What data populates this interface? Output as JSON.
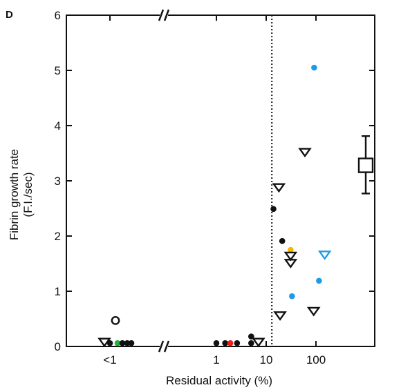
{
  "chart_data": {
    "type": "scatter",
    "panel_label": "D",
    "title": "",
    "xlabel": "Residual activity (%)",
    "ylabel_lines": [
      "Fibrin growth rate",
      "(F.I./sec)"
    ],
    "ylim": [
      0,
      6
    ],
    "y_ticks": [
      "0",
      "1",
      "2",
      "3",
      "4",
      "5",
      "6"
    ],
    "x_scale": "log with axis break",
    "x_ticks": [
      "<1",
      "1",
      "10",
      "100"
    ],
    "axis_break_symbol": "//",
    "reference_line": {
      "x": 13,
      "style": "dotted"
    },
    "grid": false,
    "legend": "none",
    "colors": {
      "black": "#111111",
      "blue": "#1e9be8",
      "red": "#e8201e",
      "green": "#1fb33a",
      "yellow": "#f5b800"
    },
    "points": [
      {
        "x": "<1",
        "y": 0.47,
        "marker": "circle-open",
        "color": "black"
      },
      {
        "x": "<1",
        "y": 0.08,
        "marker": "triangle-down-open",
        "color": "black"
      },
      {
        "x": "<1",
        "y": 0.06,
        "marker": "dot",
        "color": "black"
      },
      {
        "x": "<1",
        "y": 0.06,
        "marker": "dot",
        "color": "green"
      },
      {
        "x": "<1",
        "y": 0.06,
        "marker": "dot",
        "color": "black"
      },
      {
        "x": "<1",
        "y": 0.06,
        "marker": "dot",
        "color": "black"
      },
      {
        "x": "<1",
        "y": 0.06,
        "marker": "dot",
        "color": "black"
      },
      {
        "x": 1,
        "y": 0.06,
        "marker": "dot",
        "color": "black"
      },
      {
        "x": 1.5,
        "y": 0.06,
        "marker": "dot",
        "color": "black"
      },
      {
        "x": 1.9,
        "y": 0.06,
        "marker": "dot",
        "color": "red"
      },
      {
        "x": 2.6,
        "y": 0.06,
        "marker": "dot",
        "color": "black"
      },
      {
        "x": 5,
        "y": 0.18,
        "marker": "dot",
        "color": "black"
      },
      {
        "x": 5,
        "y": 0.06,
        "marker": "dot",
        "color": "black"
      },
      {
        "x": 7,
        "y": 0.08,
        "marker": "triangle-down-open",
        "color": "black"
      },
      {
        "x": 14,
        "y": 2.49,
        "marker": "dot",
        "color": "black"
      },
      {
        "x": 18,
        "y": 2.88,
        "marker": "triangle-down-open",
        "color": "black"
      },
      {
        "x": 19,
        "y": 0.56,
        "marker": "triangle-down-open",
        "color": "black"
      },
      {
        "x": 21,
        "y": 1.91,
        "marker": "dot",
        "color": "black"
      },
      {
        "x": 31,
        "y": 1.75,
        "marker": "dot",
        "color": "yellow"
      },
      {
        "x": 31,
        "y": 1.64,
        "marker": "triangle-down-open",
        "color": "black"
      },
      {
        "x": 31,
        "y": 1.51,
        "marker": "triangle-down-open",
        "color": "black"
      },
      {
        "x": 33,
        "y": 0.91,
        "marker": "dot",
        "color": "blue"
      },
      {
        "x": 60,
        "y": 3.52,
        "marker": "triangle-down-open",
        "color": "black"
      },
      {
        "x": 92,
        "y": 5.05,
        "marker": "dot",
        "color": "blue"
      },
      {
        "x": 90,
        "y": 0.64,
        "marker": "triangle-down-open",
        "color": "black"
      },
      {
        "x": 115,
        "y": 1.19,
        "marker": "dot",
        "color": "blue"
      },
      {
        "x": 150,
        "y": 1.66,
        "marker": "triangle-down-open",
        "color": "blue"
      }
    ],
    "summary_marker": {
      "marker": "square-open",
      "x": 1000,
      "y": 3.28,
      "error_low": 2.77,
      "error_high": 3.81
    }
  }
}
